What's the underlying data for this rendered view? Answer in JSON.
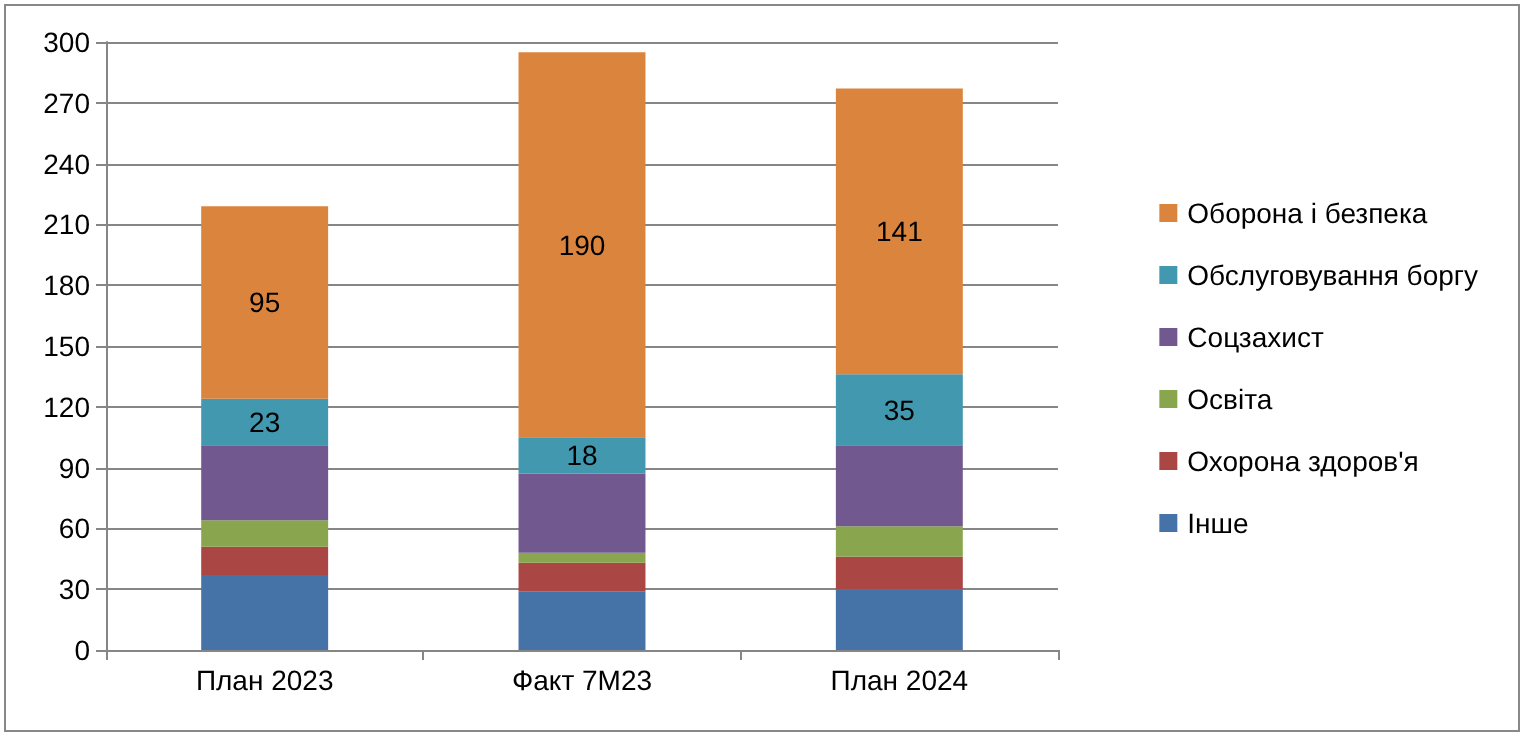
{
  "chart_data": {
    "type": "bar",
    "stacked": true,
    "categories": [
      "План 2023",
      "Факт 7М23",
      "План 2024"
    ],
    "series": [
      {
        "name": "Інше",
        "color": "#4572a7",
        "values": [
          37,
          29,
          30
        ]
      },
      {
        "name": "Охорона здоров'я",
        "color": "#aa4643",
        "values": [
          14,
          14,
          16
        ]
      },
      {
        "name": "Освіта",
        "color": "#89a54e",
        "values": [
          13,
          5,
          15
        ]
      },
      {
        "name": "Соцзахист",
        "color": "#71588f",
        "values": [
          37,
          39,
          40
        ]
      },
      {
        "name": "Обслуговування боргу",
        "color": "#4198af",
        "values": [
          23,
          18,
          35
        ],
        "value_labels": [
          "23",
          "18",
          "35"
        ]
      },
      {
        "name": "Оборона і безпека",
        "color": "#db843d",
        "values": [
          95,
          190,
          141
        ],
        "value_labels": [
          "95",
          "190",
          "141"
        ]
      }
    ],
    "ylim": [
      0,
      300
    ],
    "yticks": [
      0,
      30,
      60,
      90,
      120,
      150,
      180,
      210,
      240,
      270,
      300
    ],
    "grid": "y",
    "legend": "right"
  }
}
